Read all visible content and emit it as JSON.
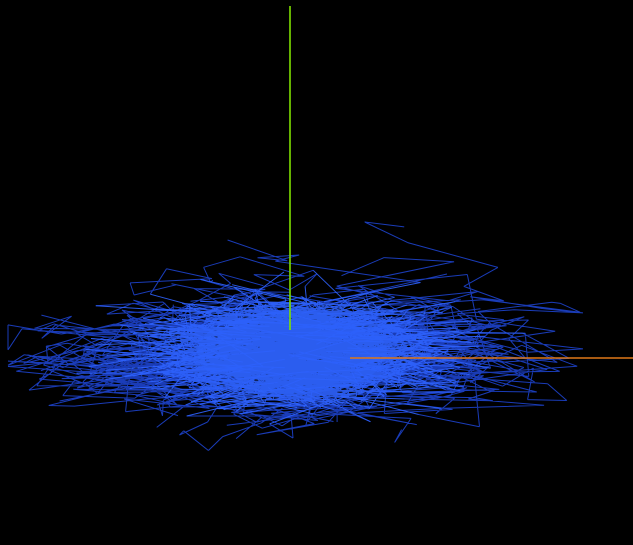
{
  "scene": {
    "background_color": "#000000",
    "walk_color": "#1f46d8",
    "walk_highlight_color": "#2f63ff",
    "walk_segment_count": 2600,
    "axes": [
      {
        "name": "y-axis",
        "color": "#7fe000"
      },
      {
        "name": "x-axis",
        "color": "#e07818"
      }
    ]
  }
}
